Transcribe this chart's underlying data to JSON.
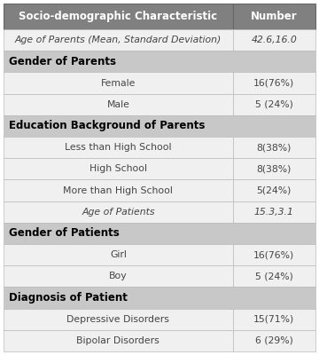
{
  "header": [
    "Socio-demographic Characteristic",
    "Number"
  ],
  "header_bg": "#808080",
  "header_fg": "#ffffff",
  "section_bg": "#c8c8c8",
  "section_fg": "#000000",
  "row_bg": "#f0f0f0",
  "row_fg": "#444444",
  "border_color": "#bbbbbb",
  "rows": [
    {
      "type": "italic_row",
      "label": "Age of Parents (Mean, Standard Deviation)",
      "value": "42.6,16.0"
    },
    {
      "type": "section",
      "label": "Gender of Parents",
      "value": ""
    },
    {
      "type": "row",
      "label": "Female",
      "value": "16(76%)"
    },
    {
      "type": "row",
      "label": "Male",
      "value": "5 (24%)"
    },
    {
      "type": "section",
      "label": "Education Background of Parents",
      "value": ""
    },
    {
      "type": "row",
      "label": "Less than High School",
      "value": "8(38%)"
    },
    {
      "type": "row",
      "label": "High School",
      "value": "8(38%)"
    },
    {
      "type": "row",
      "label": "More than High School",
      "value": "5(24%)"
    },
    {
      "type": "italic_row",
      "label": "Age of Patients",
      "value": "15.3,3.1"
    },
    {
      "type": "section",
      "label": "Gender of Patients",
      "value": ""
    },
    {
      "type": "row",
      "label": "Girl",
      "value": "16(76%)"
    },
    {
      "type": "row",
      "label": "Boy",
      "value": "5 (24%)"
    },
    {
      "type": "section",
      "label": "Diagnosis of Patient",
      "value": ""
    },
    {
      "type": "row",
      "label": "Depressive Disorders",
      "value": "15(71%)"
    },
    {
      "type": "row",
      "label": "Bipolar Disorders",
      "value": "6 (29%)"
    }
  ],
  "col_split": 0.735,
  "header_fontsize": 8.5,
  "section_fontsize": 8.5,
  "row_fontsize": 7.8,
  "fig_width": 3.6,
  "fig_height": 4.0,
  "dpi": 100
}
